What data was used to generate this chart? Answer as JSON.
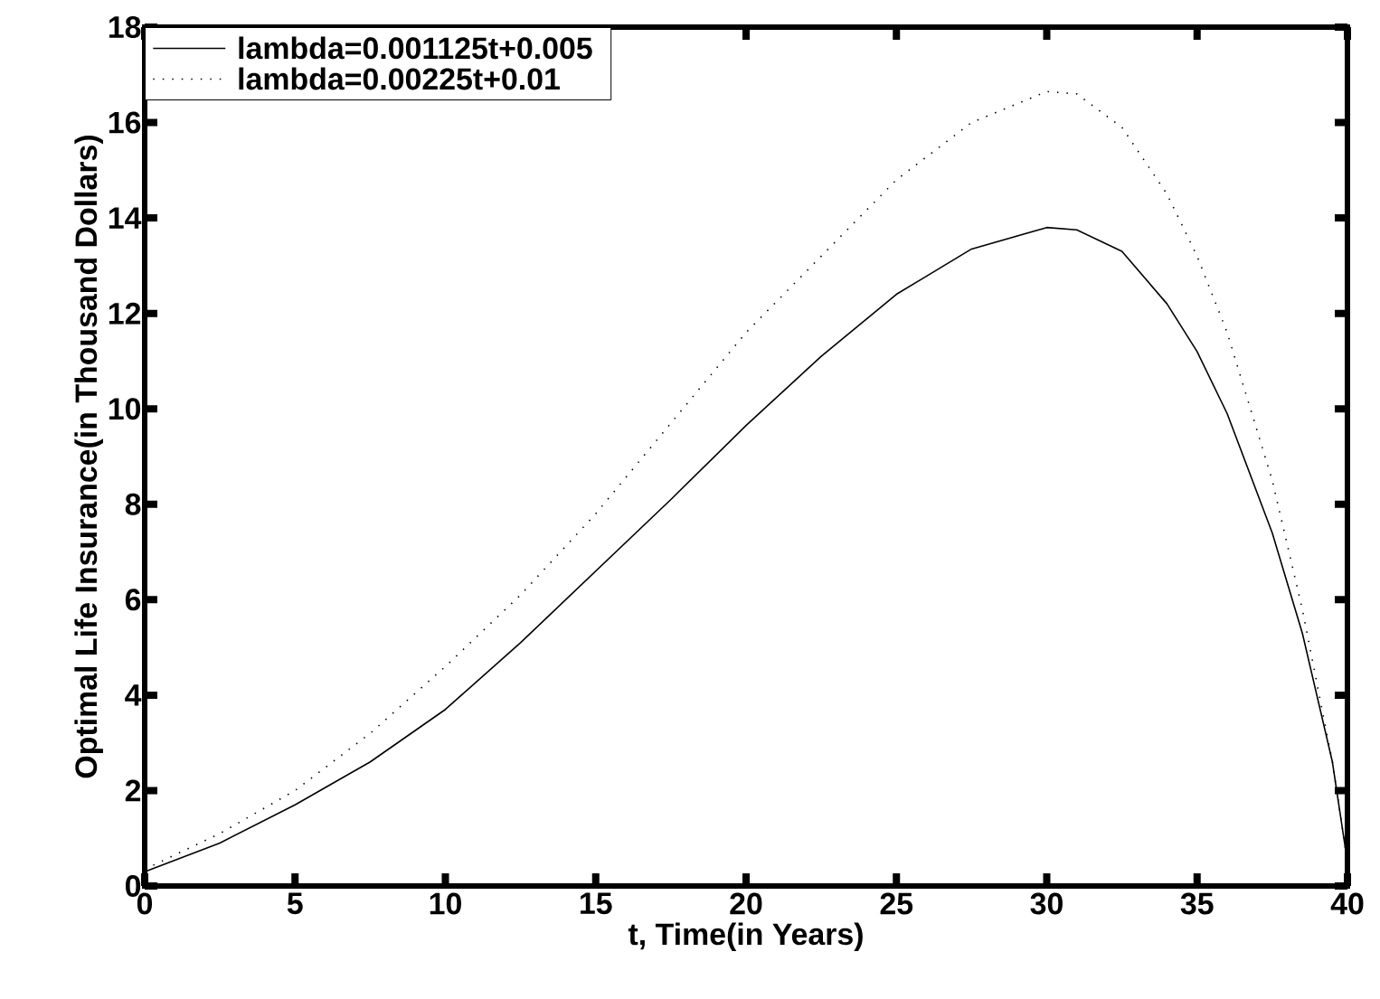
{
  "chart_data": {
    "type": "line",
    "xlabel": "t, Time(in Years)",
    "ylabel": "Optimal Life Insurance(in Thousand Dollars)",
    "xlim": [
      0,
      40
    ],
    "ylim": [
      0,
      18
    ],
    "xticks": [
      0,
      5,
      10,
      15,
      20,
      25,
      30,
      35,
      40
    ],
    "yticks": [
      0,
      2,
      4,
      6,
      8,
      10,
      12,
      14,
      16,
      18
    ],
    "legend": "top left",
    "grid": false,
    "series": [
      {
        "name": "lambda=0.001125t+0.005",
        "color": "#000000",
        "line_style": "solid",
        "x": [
          0,
          2.5,
          5,
          7.5,
          10,
          12.5,
          15,
          17.5,
          20,
          22.5,
          25,
          27.5,
          30,
          31,
          32.5,
          34,
          35,
          36,
          37.5,
          38.5,
          39.5,
          40
        ],
        "values": [
          0.3,
          0.9,
          1.7,
          2.6,
          3.7,
          5.1,
          6.6,
          8.1,
          9.65,
          11.1,
          12.4,
          13.35,
          13.8,
          13.75,
          13.3,
          12.2,
          11.2,
          9.9,
          7.4,
          5.3,
          2.6,
          0.5
        ]
      },
      {
        "name": "lambda=0.00225t+0.01",
        "color": "#000000",
        "line_style": "dotted",
        "x": [
          0,
          2.5,
          5,
          7.5,
          10,
          12.5,
          15,
          17.5,
          20,
          22.5,
          25,
          27.5,
          30,
          31,
          32.5,
          34,
          35,
          36,
          37.5,
          38.5,
          39.5,
          40
        ],
        "values": [
          0.35,
          1.1,
          2.0,
          3.2,
          4.6,
          6.1,
          7.8,
          9.7,
          11.6,
          13.2,
          14.8,
          16.0,
          16.65,
          16.6,
          15.9,
          14.5,
          13.2,
          11.6,
          8.5,
          5.8,
          2.6,
          0.5
        ]
      }
    ]
  }
}
